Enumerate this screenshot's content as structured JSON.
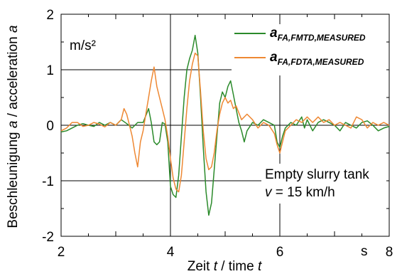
{
  "chart_data": {
    "type": "line",
    "title": "",
    "xlabel": "Zeit t / time t",
    "xlabel_parts": {
      "a": "Zeit ",
      "b": "t",
      "c": " / time ",
      "d": "t"
    },
    "ylabel_parts": {
      "a": "Beschleunigung ",
      "b": "a",
      "c": " / acceleration ",
      "d": "a"
    },
    "x_unit": "s",
    "y_unit": "m/s²",
    "xlim": [
      2,
      8
    ],
    "ylim": [
      -2,
      2
    ],
    "x_ticks": [
      2,
      4,
      6,
      8
    ],
    "y_ticks": [
      -2,
      -1,
      0,
      1,
      2
    ],
    "grid": true,
    "legend_position": "top-right",
    "annotation": {
      "line1": "Empty slurry tank",
      "line2_var": "v",
      "line2_rest": " = 15 km/h"
    },
    "series": [
      {
        "name": "a_FA,FMTD,MEASURED",
        "name_main": "a",
        "name_sub": "FA,FMTD,MEASURED",
        "color": "#2a8a2a",
        "points": [
          [
            2.0,
            -0.12
          ],
          [
            2.1,
            -0.1
          ],
          [
            2.2,
            -0.05
          ],
          [
            2.3,
            0.0
          ],
          [
            2.4,
            0.03
          ],
          [
            2.5,
            0.0
          ],
          [
            2.6,
            -0.02
          ],
          [
            2.7,
            0.05
          ],
          [
            2.8,
            0.0
          ],
          [
            2.9,
            0.05
          ],
          [
            3.0,
            0.0
          ],
          [
            3.1,
            0.1
          ],
          [
            3.2,
            0.03
          ],
          [
            3.3,
            -0.05
          ],
          [
            3.4,
            0.05
          ],
          [
            3.5,
            0.05
          ],
          [
            3.6,
            0.3
          ],
          [
            3.65,
            0.05
          ],
          [
            3.7,
            -0.3
          ],
          [
            3.75,
            -0.35
          ],
          [
            3.8,
            -0.3
          ],
          [
            3.85,
            0.05
          ],
          [
            3.9,
            0.02
          ],
          [
            3.95,
            -0.3
          ],
          [
            4.0,
            -1.1
          ],
          [
            4.05,
            -1.25
          ],
          [
            4.1,
            -1.3
          ],
          [
            4.15,
            -0.9
          ],
          [
            4.2,
            -0.2
          ],
          [
            4.25,
            0.5
          ],
          [
            4.3,
            1.0
          ],
          [
            4.35,
            1.2
          ],
          [
            4.4,
            1.35
          ],
          [
            4.45,
            1.62
          ],
          [
            4.5,
            1.3
          ],
          [
            4.55,
            0.5
          ],
          [
            4.6,
            -0.4
          ],
          [
            4.65,
            -1.2
          ],
          [
            4.7,
            -1.62
          ],
          [
            4.75,
            -1.4
          ],
          [
            4.8,
            -0.8
          ],
          [
            4.85,
            -0.2
          ],
          [
            4.9,
            0.4
          ],
          [
            4.95,
            0.6
          ],
          [
            5.0,
            0.5
          ],
          [
            5.05,
            0.7
          ],
          [
            5.1,
            0.8
          ],
          [
            5.15,
            0.55
          ],
          [
            5.2,
            0.3
          ],
          [
            5.25,
            0.05
          ],
          [
            5.3,
            -0.1
          ],
          [
            5.35,
            -0.3
          ],
          [
            5.4,
            -0.1
          ],
          [
            5.5,
            0.05
          ],
          [
            5.6,
            0.0
          ],
          [
            5.7,
            0.1
          ],
          [
            5.8,
            0.05
          ],
          [
            5.9,
            0.0
          ],
          [
            5.95,
            -0.3
          ],
          [
            6.0,
            -0.4
          ],
          [
            6.05,
            -0.2
          ],
          [
            6.1,
            -0.05
          ],
          [
            6.2,
            0.05
          ],
          [
            6.3,
            0.0
          ],
          [
            6.4,
            0.15
          ],
          [
            6.45,
            -0.05
          ],
          [
            6.5,
            0.1
          ],
          [
            6.6,
            -0.1
          ],
          [
            6.7,
            0.05
          ],
          [
            6.8,
            0.1
          ],
          [
            6.9,
            0.05
          ],
          [
            7.0,
            0.0
          ],
          [
            7.1,
            -0.1
          ],
          [
            7.2,
            0.05
          ],
          [
            7.3,
            0.0
          ],
          [
            7.4,
            -0.05
          ],
          [
            7.5,
            0.05
          ],
          [
            7.6,
            0.08
          ],
          [
            7.7,
            0.0
          ],
          [
            7.8,
            -0.1
          ],
          [
            7.9,
            -0.05
          ],
          [
            8.0,
            -0.02
          ]
        ]
      },
      {
        "name": "a_FA,FDTA,MEASURED",
        "name_main": "a",
        "name_sub": "FA,FDTA,MEASURED",
        "color": "#ee8833",
        "points": [
          [
            2.0,
            -0.1
          ],
          [
            2.1,
            -0.05
          ],
          [
            2.2,
            0.05
          ],
          [
            2.3,
            0.05
          ],
          [
            2.4,
            -0.02
          ],
          [
            2.5,
            0.0
          ],
          [
            2.6,
            0.05
          ],
          [
            2.7,
            0.02
          ],
          [
            2.8,
            -0.03
          ],
          [
            2.9,
            0.05
          ],
          [
            3.0,
            0.0
          ],
          [
            3.1,
            0.1
          ],
          [
            3.15,
            0.3
          ],
          [
            3.2,
            0.2
          ],
          [
            3.25,
            0.0
          ],
          [
            3.3,
            -0.2
          ],
          [
            3.35,
            -0.5
          ],
          [
            3.4,
            -0.75
          ],
          [
            3.45,
            -0.3
          ],
          [
            3.5,
            -0.1
          ],
          [
            3.55,
            0.2
          ],
          [
            3.6,
            0.5
          ],
          [
            3.65,
            0.8
          ],
          [
            3.7,
            1.05
          ],
          [
            3.75,
            0.7
          ],
          [
            3.8,
            0.5
          ],
          [
            3.85,
            0.3
          ],
          [
            3.9,
            0.1
          ],
          [
            3.95,
            -0.2
          ],
          [
            4.0,
            -0.6
          ],
          [
            4.05,
            -0.95
          ],
          [
            4.1,
            -1.15
          ],
          [
            4.15,
            -1.2
          ],
          [
            4.2,
            -0.9
          ],
          [
            4.25,
            -0.3
          ],
          [
            4.3,
            0.3
          ],
          [
            4.35,
            0.8
          ],
          [
            4.4,
            1.1
          ],
          [
            4.45,
            1.3
          ],
          [
            4.5,
            1.25
          ],
          [
            4.55,
            0.6
          ],
          [
            4.6,
            -0.1
          ],
          [
            4.65,
            -0.6
          ],
          [
            4.7,
            -0.8
          ],
          [
            4.75,
            -0.75
          ],
          [
            4.8,
            -0.5
          ],
          [
            4.85,
            -0.1
          ],
          [
            4.9,
            0.2
          ],
          [
            4.95,
            0.4
          ],
          [
            5.0,
            0.5
          ],
          [
            5.05,
            0.4
          ],
          [
            5.1,
            0.45
          ],
          [
            5.15,
            0.3
          ],
          [
            5.2,
            0.35
          ],
          [
            5.3,
            0.1
          ],
          [
            5.4,
            0.2
          ],
          [
            5.5,
            0.1
          ],
          [
            5.6,
            -0.05
          ],
          [
            5.7,
            0.05
          ],
          [
            5.8,
            0.0
          ],
          [
            5.9,
            -0.15
          ],
          [
            5.95,
            -0.35
          ],
          [
            6.0,
            -0.5
          ],
          [
            6.05,
            -0.3
          ],
          [
            6.1,
            -0.1
          ],
          [
            6.2,
            0.0
          ],
          [
            6.3,
            0.1
          ],
          [
            6.4,
            0.05
          ],
          [
            6.5,
            0.15
          ],
          [
            6.6,
            0.05
          ],
          [
            6.7,
            0.15
          ],
          [
            6.8,
            0.05
          ],
          [
            6.9,
            0.1
          ],
          [
            7.0,
            0.0
          ],
          [
            7.1,
            0.05
          ],
          [
            7.2,
            0.0
          ],
          [
            7.3,
            -0.05
          ],
          [
            7.4,
            0.15
          ],
          [
            7.5,
            0.1
          ],
          [
            7.6,
            -0.05
          ],
          [
            7.7,
            0.05
          ],
          [
            7.8,
            0.0
          ],
          [
            7.9,
            0.05
          ],
          [
            8.0,
            0.0
          ]
        ]
      }
    ]
  }
}
